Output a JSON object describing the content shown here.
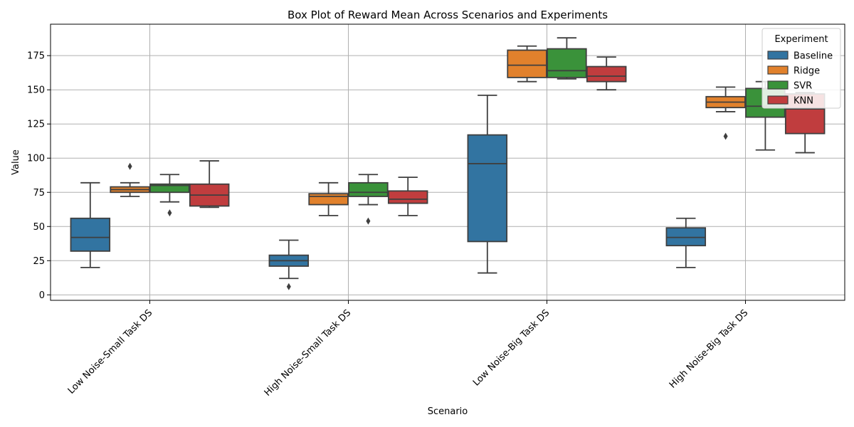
{
  "chart_data": {
    "type": "box",
    "title": "Box Plot of Reward Mean Across Scenarios and Experiments",
    "xlabel": "Scenario",
    "ylabel": "Value",
    "ylim": [
      -4,
      198
    ],
    "yticks": [
      0,
      25,
      50,
      75,
      100,
      125,
      150,
      175
    ],
    "grid": true,
    "legend": {
      "title": "Experiment",
      "placement": "top-right"
    },
    "categories": [
      "Low Noise-Small Task DS",
      "High Noise-Small Task DS",
      "Low Noise-Big Task DS",
      "High Noise-Big Task DS"
    ],
    "series": [
      {
        "name": "Baseline",
        "color": "#3274a1",
        "boxes": [
          {
            "whislo": 20,
            "q1": 32,
            "med": 42,
            "q3": 56,
            "whishi": 82,
            "fliers": []
          },
          {
            "whislo": 12,
            "q1": 21,
            "med": 25,
            "q3": 29,
            "whishi": 40,
            "fliers": [
              6
            ]
          },
          {
            "whislo": 16,
            "q1": 39,
            "med": 96,
            "q3": 117,
            "whishi": 146,
            "fliers": []
          },
          {
            "whislo": 20,
            "q1": 36,
            "med": 42,
            "q3": 49,
            "whishi": 56,
            "fliers": []
          }
        ]
      },
      {
        "name": "Ridge",
        "color": "#e1812c",
        "boxes": [
          {
            "whislo": 72,
            "q1": 75,
            "med": 77,
            "q3": 79,
            "whishi": 82,
            "fliers": [
              94
            ]
          },
          {
            "whislo": 58,
            "q1": 66,
            "med": 72,
            "q3": 74,
            "whishi": 82,
            "fliers": []
          },
          {
            "whislo": 156,
            "q1": 159,
            "med": 168,
            "q3": 179,
            "whishi": 182,
            "fliers": []
          },
          {
            "whislo": 134,
            "q1": 137,
            "med": 141,
            "q3": 145,
            "whishi": 152,
            "fliers": [
              116
            ]
          }
        ]
      },
      {
        "name": "SVR",
        "color": "#3a923a",
        "boxes": [
          {
            "whislo": 68,
            "q1": 75,
            "med": 80,
            "q3": 81,
            "whishi": 88,
            "fliers": [
              60
            ]
          },
          {
            "whislo": 66,
            "q1": 72,
            "med": 75,
            "q3": 82,
            "whishi": 88,
            "fliers": [
              54
            ]
          },
          {
            "whislo": 158,
            "q1": 159,
            "med": 164,
            "q3": 180,
            "whishi": 188,
            "fliers": []
          },
          {
            "whislo": 106,
            "q1": 130,
            "med": 138,
            "q3": 151,
            "whishi": 156,
            "fliers": []
          }
        ]
      },
      {
        "name": "KNN",
        "color": "#c03d3e",
        "boxes": [
          {
            "whislo": 64,
            "q1": 65,
            "med": 73,
            "q3": 81,
            "whishi": 98,
            "fliers": []
          },
          {
            "whislo": 58,
            "q1": 67,
            "med": 70,
            "q3": 76,
            "whishi": 86,
            "fliers": []
          },
          {
            "whislo": 150,
            "q1": 156,
            "med": 160,
            "q3": 167,
            "whishi": 174,
            "fliers": []
          },
          {
            "whislo": 104,
            "q1": 118,
            "med": 136,
            "q3": 147,
            "whishi": 148,
            "fliers": []
          }
        ]
      }
    ]
  }
}
